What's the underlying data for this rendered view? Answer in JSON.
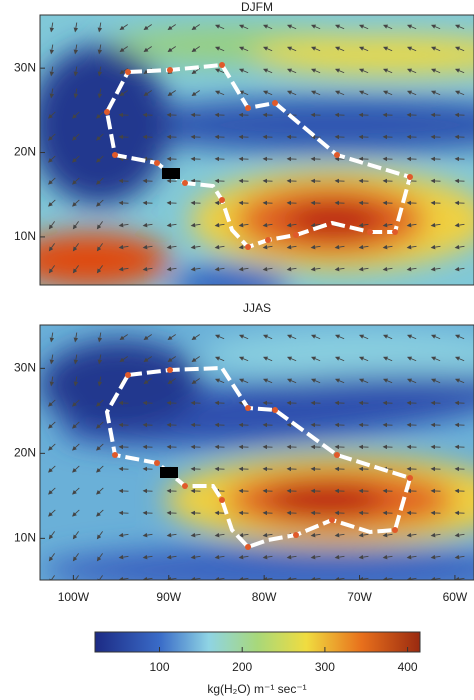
{
  "panels": [
    {
      "title": "DJFM",
      "xlim": [
        -103.5,
        -58
      ],
      "ylim": [
        4.3,
        36.3
      ],
      "yticks": [
        {
          "value": 30,
          "label": "30N"
        },
        {
          "value": 20,
          "label": "20N"
        },
        {
          "value": 10,
          "label": "10N"
        }
      ]
    },
    {
      "title": "JJAS",
      "xlim": [
        -103.5,
        -58
      ],
      "ylim": [
        5.1,
        35.1
      ],
      "yticks": [
        {
          "value": 30,
          "label": "30N"
        },
        {
          "value": 20,
          "label": "20N"
        },
        {
          "value": 10,
          "label": "10N"
        }
      ],
      "xticks": [
        {
          "value": -100,
          "label": "100W"
        },
        {
          "value": -90,
          "label": "90W"
        },
        {
          "value": -80,
          "label": "80W"
        },
        {
          "value": -70,
          "label": "70W"
        },
        {
          "value": -60,
          "label": "60W"
        }
      ]
    }
  ],
  "colorbar": {
    "range": [
      22,
      415
    ],
    "ticks": [
      100,
      200,
      300,
      400
    ],
    "label": "kg(H₂O) m⁻¹ sec⁻¹"
  }
}
